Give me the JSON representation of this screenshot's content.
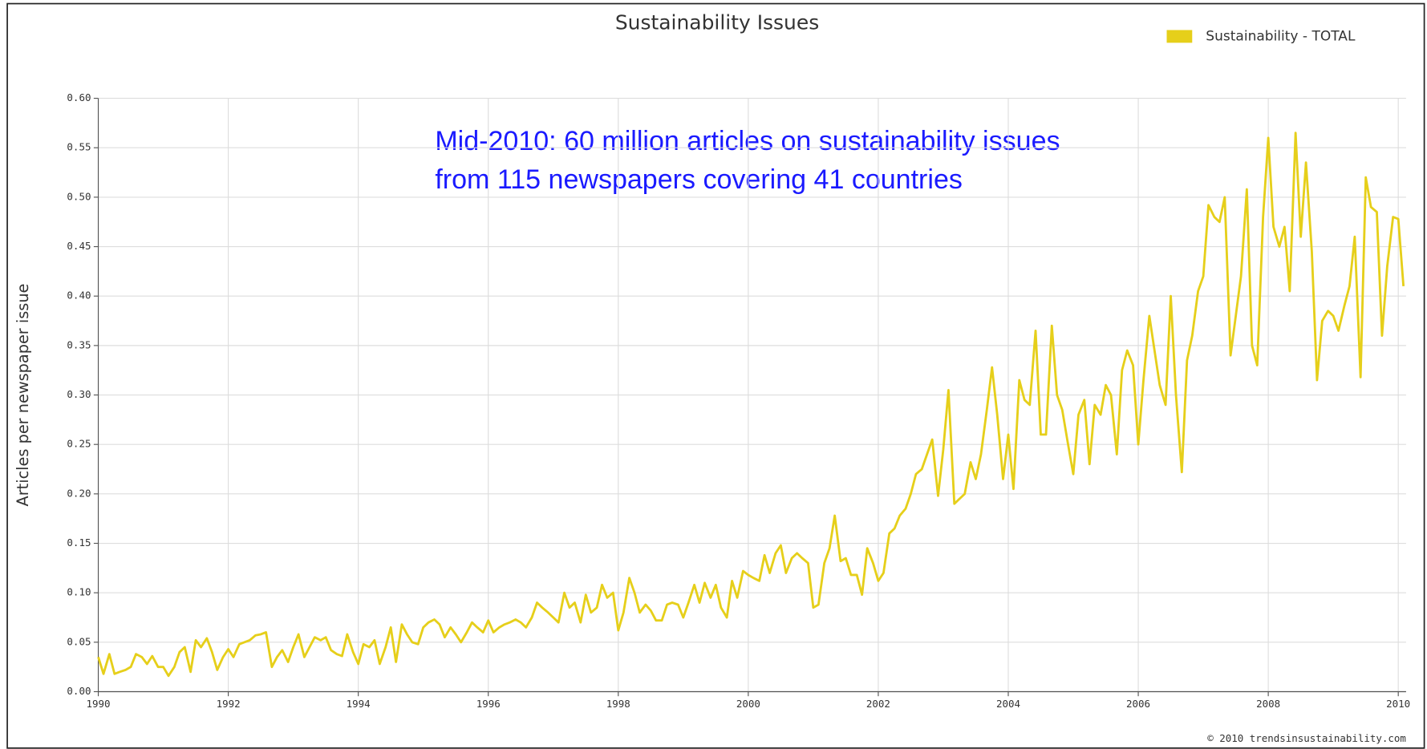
{
  "chart_data": {
    "type": "line",
    "title": "Sustainability Issues",
    "y_label": "Articles per newspaper issue",
    "annotations": [
      "Mid-2010: 60 million articles on sustainability issues",
      "from 115 newspapers covering 41 countries"
    ],
    "source": "© 2010 trendsinsustainability.com",
    "legend": "top-right",
    "grid": true,
    "xlim": [
      1990,
      2010.12
    ],
    "ylim": [
      0,
      0.6
    ],
    "xticks": [
      1990,
      1992,
      1994,
      1996,
      1998,
      2000,
      2002,
      2004,
      2006,
      2008,
      2010
    ],
    "yticks": [
      {
        "value": 0,
        "label": "0.00"
      },
      {
        "value": 0.05,
        "label": "0.05"
      },
      {
        "value": 0.1,
        "label": "0.10"
      },
      {
        "value": 0.15,
        "label": "0.15"
      },
      {
        "value": 0.2,
        "label": "0.20"
      },
      {
        "value": 0.25,
        "label": "0.25"
      },
      {
        "value": 0.3,
        "label": "0.30"
      },
      {
        "value": 0.35,
        "label": "0.35"
      },
      {
        "value": 0.4,
        "label": "0.40"
      },
      {
        "value": 0.45,
        "label": "0.45"
      },
      {
        "value": 0.5,
        "label": "0.50"
      },
      {
        "value": 0.55,
        "label": "0.55"
      },
      {
        "value": 0.6,
        "label": "0.60"
      }
    ],
    "x": [
      1990,
      1990.08,
      1990.17,
      1990.25,
      1990.33,
      1990.42,
      1990.5,
      1990.58,
      1990.67,
      1990.75,
      1990.83,
      1990.92,
      1991,
      1991.08,
      1991.17,
      1991.25,
      1991.33,
      1991.42,
      1991.5,
      1991.58,
      1991.67,
      1991.75,
      1991.83,
      1991.92,
      1992,
      1992.08,
      1992.17,
      1992.25,
      1992.33,
      1992.42,
      1992.5,
      1992.58,
      1992.67,
      1992.75,
      1992.83,
      1992.92,
      1993,
      1993.08,
      1993.17,
      1993.25,
      1993.33,
      1993.42,
      1993.5,
      1993.58,
      1993.67,
      1993.75,
      1993.83,
      1993.92,
      1994,
      1994.08,
      1994.17,
      1994.25,
      1994.33,
      1994.42,
      1994.5,
      1994.58,
      1994.67,
      1994.75,
      1994.83,
      1994.92,
      1995,
      1995.08,
      1995.17,
      1995.25,
      1995.33,
      1995.42,
      1995.5,
      1995.58,
      1995.67,
      1995.75,
      1995.83,
      1995.92,
      1996,
      1996.08,
      1996.17,
      1996.25,
      1996.33,
      1996.42,
      1996.5,
      1996.58,
      1996.67,
      1996.75,
      1996.83,
      1996.92,
      1997,
      1997.08,
      1997.17,
      1997.25,
      1997.33,
      1997.42,
      1997.5,
      1997.58,
      1997.67,
      1997.75,
      1997.83,
      1997.92,
      1998,
      1998.08,
      1998.17,
      1998.25,
      1998.33,
      1998.42,
      1998.5,
      1998.58,
      1998.67,
      1998.75,
      1998.83,
      1998.92,
      1999,
      1999.08,
      1999.17,
      1999.25,
      1999.33,
      1999.42,
      1999.5,
      1999.58,
      1999.67,
      1999.75,
      1999.83,
      1999.92,
      2000,
      2000.08,
      2000.17,
      2000.25,
      2000.33,
      2000.42,
      2000.5,
      2000.58,
      2000.67,
      2000.75,
      2000.83,
      2000.92,
      2001,
      2001.08,
      2001.17,
      2001.25,
      2001.33,
      2001.42,
      2001.5,
      2001.58,
      2001.67,
      2001.75,
      2001.83,
      2001.92,
      2002,
      2002.08,
      2002.17,
      2002.25,
      2002.33,
      2002.42,
      2002.5,
      2002.58,
      2002.67,
      2002.75,
      2002.83,
      2002.92,
      2003,
      2003.08,
      2003.17,
      2003.25,
      2003.33,
      2003.42,
      2003.5,
      2003.58,
      2003.67,
      2003.75,
      2003.83,
      2003.92,
      2004,
      2004.08,
      2004.17,
      2004.25,
      2004.33,
      2004.42,
      2004.5,
      2004.58,
      2004.67,
      2004.75,
      2004.83,
      2004.92,
      2005,
      2005.08,
      2005.17,
      2005.25,
      2005.33,
      2005.42,
      2005.5,
      2005.58,
      2005.67,
      2005.75,
      2005.83,
      2005.92,
      2006,
      2006.08,
      2006.17,
      2006.25,
      2006.33,
      2006.42,
      2006.5,
      2006.58,
      2006.67,
      2006.75,
      2006.83,
      2006.92,
      2007,
      2007.08,
      2007.17,
      2007.25,
      2007.33,
      2007.42,
      2007.5,
      2007.58,
      2007.67,
      2007.75,
      2007.83,
      2007.92,
      2008,
      2008.08,
      2008.17,
      2008.25,
      2008.33,
      2008.42,
      2008.5,
      2008.58,
      2008.67,
      2008.75,
      2008.83,
      2008.92,
      2009,
      2009.08,
      2009.17,
      2009.25,
      2009.33,
      2009.42,
      2009.5,
      2009.58,
      2009.67,
      2009.75,
      2009.83,
      2009.92,
      2010,
      2010.08
    ],
    "series": [
      {
        "name": "Sustainability - TOTAL",
        "color": "#e6cf1a",
        "values": [
          0.035,
          0.018,
          0.038,
          0.018,
          0.02,
          0.022,
          0.025,
          0.038,
          0.035,
          0.028,
          0.036,
          0.025,
          0.025,
          0.016,
          0.025,
          0.04,
          0.045,
          0.02,
          0.052,
          0.045,
          0.054,
          0.04,
          0.022,
          0.035,
          0.043,
          0.035,
          0.048,
          0.05,
          0.052,
          0.057,
          0.058,
          0.06,
          0.025,
          0.035,
          0.042,
          0.03,
          0.045,
          0.058,
          0.035,
          0.045,
          0.055,
          0.052,
          0.055,
          0.042,
          0.038,
          0.036,
          0.058,
          0.04,
          0.028,
          0.048,
          0.045,
          0.052,
          0.028,
          0.045,
          0.065,
          0.03,
          0.068,
          0.058,
          0.05,
          0.048,
          0.065,
          0.07,
          0.073,
          0.068,
          0.055,
          0.065,
          0.058,
          0.05,
          0.06,
          0.07,
          0.065,
          0.06,
          0.072,
          0.06,
          0.065,
          0.068,
          0.07,
          0.073,
          0.07,
          0.065,
          0.075,
          0.09,
          0.085,
          0.08,
          0.075,
          0.07,
          0.1,
          0.085,
          0.09,
          0.07,
          0.098,
          0.08,
          0.085,
          0.108,
          0.095,
          0.1,
          0.062,
          0.08,
          0.115,
          0.1,
          0.08,
          0.088,
          0.082,
          0.072,
          0.072,
          0.088,
          0.09,
          0.088,
          0.075,
          0.09,
          0.108,
          0.09,
          0.11,
          0.095,
          0.108,
          0.085,
          0.075,
          0.112,
          0.095,
          0.122,
          0.118,
          0.115,
          0.112,
          0.138,
          0.12,
          0.14,
          0.148,
          0.12,
          0.135,
          0.14,
          0.135,
          0.13,
          0.085,
          0.088,
          0.13,
          0.145,
          0.178,
          0.132,
          0.135,
          0.118,
          0.118,
          0.098,
          0.145,
          0.13,
          0.112,
          0.12,
          0.16,
          0.165,
          0.178,
          0.185,
          0.2,
          0.22,
          0.225,
          0.24,
          0.255,
          0.198,
          0.245,
          0.305,
          0.19,
          0.195,
          0.2,
          0.232,
          0.215,
          0.24,
          0.285,
          0.328,
          0.28,
          0.215,
          0.26,
          0.205,
          0.315,
          0.295,
          0.29,
          0.365,
          0.26,
          0.26,
          0.37,
          0.3,
          0.285,
          0.25,
          0.22,
          0.28,
          0.295,
          0.23,
          0.29,
          0.28,
          0.31,
          0.3,
          0.24,
          0.325,
          0.345,
          0.33,
          0.25,
          0.315,
          0.38,
          0.345,
          0.31,
          0.29,
          0.4,
          0.3,
          0.222,
          0.335,
          0.36,
          0.405,
          0.42,
          0.492,
          0.48,
          0.475,
          0.5,
          0.34,
          0.38,
          0.42,
          0.508,
          0.35,
          0.33,
          0.48,
          0.56,
          0.47,
          0.45,
          0.47,
          0.405,
          0.565,
          0.46,
          0.535,
          0.445,
          0.315,
          0.375,
          0.385,
          0.38,
          0.365,
          0.39,
          0.41,
          0.46,
          0.318,
          0.52,
          0.49,
          0.485,
          0.36,
          0.43,
          0.48,
          0.478,
          0.41
        ]
      }
    ]
  }
}
